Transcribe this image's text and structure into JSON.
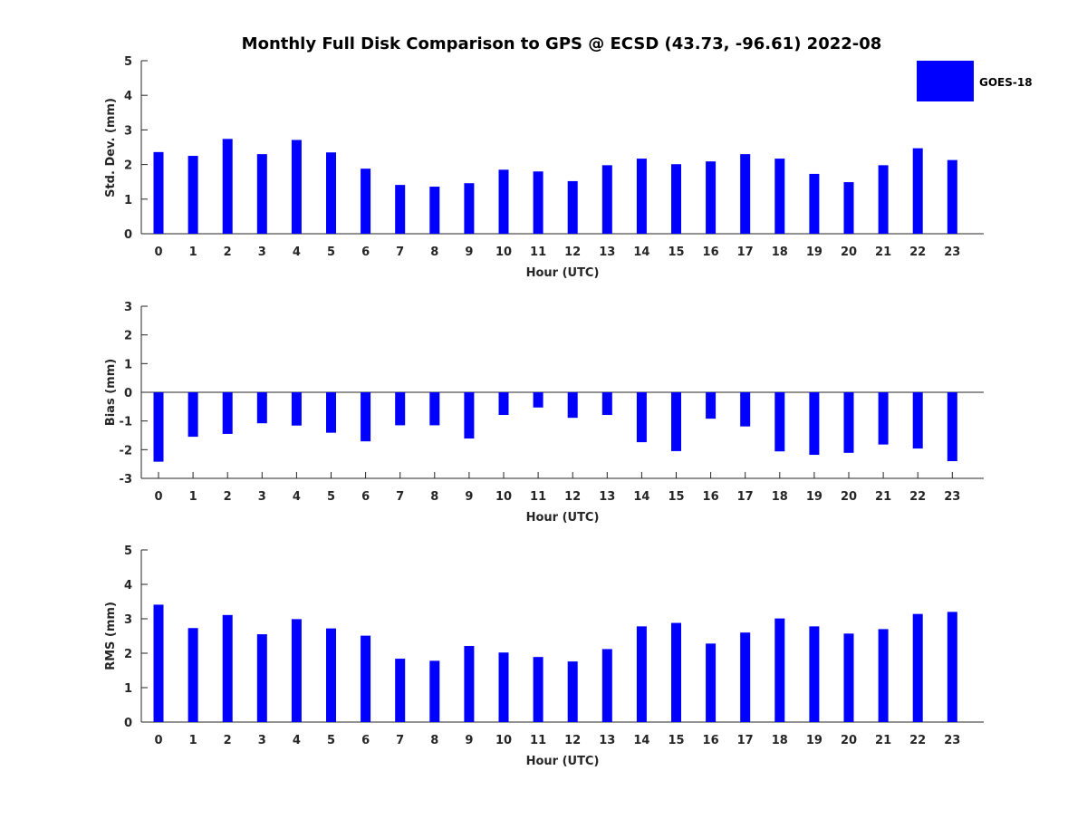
{
  "title": "Monthly Full Disk Comparison to GPS @ ECSD (43.73, -96.61) 2022-08",
  "legend": {
    "label": "GOES-18",
    "color": "#0000ff"
  },
  "chart_data": [
    {
      "type": "bar",
      "title": "Monthly Full Disk Comparison to GPS @ ECSD (43.73, -96.61) 2022-08",
      "xlabel": "Hour (UTC)",
      "ylabel": "Std. Dev. (mm)",
      "ylim": [
        0,
        5
      ],
      "yticks": [
        0,
        1,
        2,
        3,
        4,
        5
      ],
      "categories": [
        "0",
        "1",
        "2",
        "3",
        "4",
        "5",
        "6",
        "7",
        "8",
        "9",
        "10",
        "11",
        "12",
        "13",
        "14",
        "15",
        "16",
        "17",
        "18",
        "19",
        "20",
        "21",
        "22",
        "23"
      ],
      "series": [
        {
          "name": "GOES-18",
          "values": [
            2.36,
            2.25,
            2.74,
            2.3,
            2.71,
            2.35,
            1.88,
            1.41,
            1.36,
            1.46,
            1.85,
            1.8,
            1.52,
            1.98,
            2.17,
            2.01,
            2.09,
            2.3,
            2.17,
            1.73,
            1.49,
            1.98,
            2.47,
            2.13
          ]
        }
      ],
      "legend_position": "top-right"
    },
    {
      "type": "bar",
      "xlabel": "Hour (UTC)",
      "ylabel": "Bias (mm)",
      "ylim": [
        -3,
        3
      ],
      "yticks": [
        -3,
        -2,
        -1,
        0,
        1,
        2,
        3
      ],
      "categories": [
        "0",
        "1",
        "2",
        "3",
        "4",
        "5",
        "6",
        "7",
        "8",
        "9",
        "10",
        "11",
        "12",
        "13",
        "14",
        "15",
        "16",
        "17",
        "18",
        "19",
        "20",
        "21",
        "22",
        "23"
      ],
      "series": [
        {
          "name": "GOES-18",
          "values": [
            -2.42,
            -1.55,
            -1.45,
            -1.08,
            -1.16,
            -1.41,
            -1.71,
            -1.15,
            -1.15,
            -1.61,
            -0.79,
            -0.53,
            -0.89,
            -0.79,
            -1.74,
            -2.05,
            -0.92,
            -1.19,
            -2.06,
            -2.18,
            -2.11,
            -1.82,
            -1.96,
            -2.4
          ]
        }
      ]
    },
    {
      "type": "bar",
      "xlabel": "Hour (UTC)",
      "ylabel": "RMS (mm)",
      "ylim": [
        0,
        5
      ],
      "yticks": [
        0,
        1,
        2,
        3,
        4,
        5
      ],
      "categories": [
        "0",
        "1",
        "2",
        "3",
        "4",
        "5",
        "6",
        "7",
        "8",
        "9",
        "10",
        "11",
        "12",
        "13",
        "14",
        "15",
        "16",
        "17",
        "18",
        "19",
        "20",
        "21",
        "22",
        "23"
      ],
      "series": [
        {
          "name": "GOES-18",
          "values": [
            3.41,
            2.73,
            3.11,
            2.55,
            2.99,
            2.72,
            2.51,
            1.84,
            1.78,
            2.21,
            2.02,
            1.89,
            1.76,
            2.12,
            2.78,
            2.88,
            2.28,
            2.6,
            3.01,
            2.78,
            2.57,
            2.7,
            3.14,
            3.2
          ]
        }
      ]
    }
  ]
}
